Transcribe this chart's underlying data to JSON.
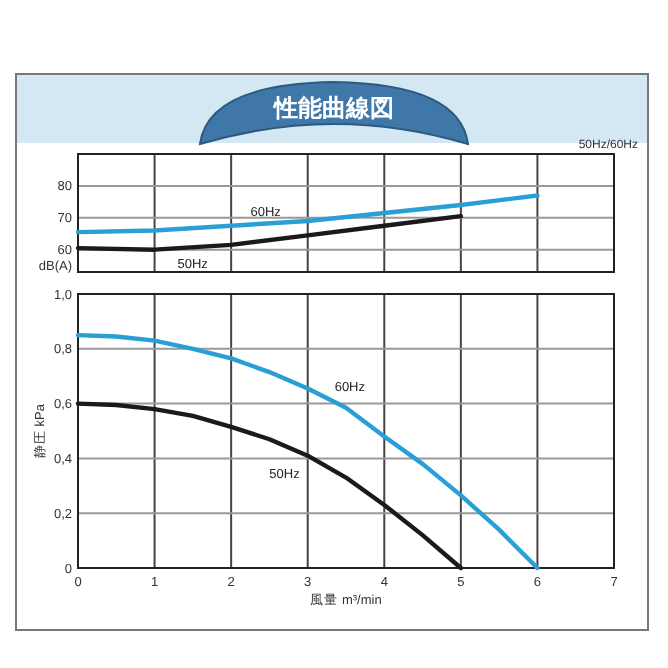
{
  "chart_data": [
    {
      "type": "line",
      "title": "性能曲線図",
      "ylabel": "dB(A)",
      "annotations": [
        "50Hz/60Hz",
        {
          "text": "60Hz",
          "x": 2.2,
          "y": 67.9
        },
        {
          "text": "50Hz",
          "x": 1.8,
          "y": 61.2
        }
      ],
      "x": [
        0,
        1,
        2,
        3,
        4,
        5,
        6
      ],
      "series": [
        {
          "color": "#2a9fd6",
          "values": [
            65.5,
            66,
            67.5,
            69,
            71.5,
            74,
            77
          ]
        },
        {
          "color": "#1a1a1a",
          "values": [
            60.5,
            60,
            61.5,
            64.5,
            67.5,
            70.5,
            null
          ]
        }
      ],
      "xlim": [
        0,
        7
      ],
      "ylim": [
        53,
        90
      ],
      "xticks": [
        0,
        1,
        2,
        3,
        4,
        5,
        6,
        7
      ],
      "yticks": [
        60,
        70,
        80
      ],
      "grid": true,
      "tick_labels": "y"
    },
    {
      "type": "line",
      "xlabel": "風量 m³/min",
      "ylabel": "静圧 kPa",
      "annotations": [
        {
          "text": "60Hz",
          "x": 3.3,
          "y": 0.615
        },
        {
          "text": "50Hz",
          "x": 3,
          "y": 0.41
        }
      ],
      "series": [
        {
          "color": "#2a9fd6",
          "x": [
            0,
            0.5,
            1,
            1.5,
            2,
            2.5,
            3,
            3.5,
            4,
            4.5,
            5,
            5.5,
            6
          ],
          "values": [
            0.85,
            0.845,
            0.83,
            0.8,
            0.765,
            0.715,
            0.655,
            0.585,
            0.48,
            0.38,
            0.265,
            0.14,
            0
          ]
        },
        {
          "color": "#1a1a1a",
          "x": [
            0,
            0.5,
            1,
            1.5,
            2,
            2.5,
            3,
            3.5,
            4,
            4.5,
            5
          ],
          "values": [
            0.6,
            0.595,
            0.58,
            0.555,
            0.515,
            0.47,
            0.41,
            0.33,
            0.23,
            0.12,
            0
          ]
        }
      ],
      "xlim": [
        0,
        7
      ],
      "ylim": [
        0,
        1
      ],
      "xticks": [
        0,
        1,
        2,
        3,
        4,
        5,
        6,
        7
      ],
      "yticks": [
        {
          "value": 0,
          "label": "0"
        },
        {
          "value": 0.2,
          "label": "0,2"
        },
        {
          "value": 0.4,
          "label": "0,4"
        },
        {
          "value": 0.6,
          "label": "0,6"
        },
        {
          "value": 0.8,
          "label": "0,8"
        },
        {
          "value": 1,
          "label": "1,0"
        }
      ],
      "grid": true
    }
  ]
}
